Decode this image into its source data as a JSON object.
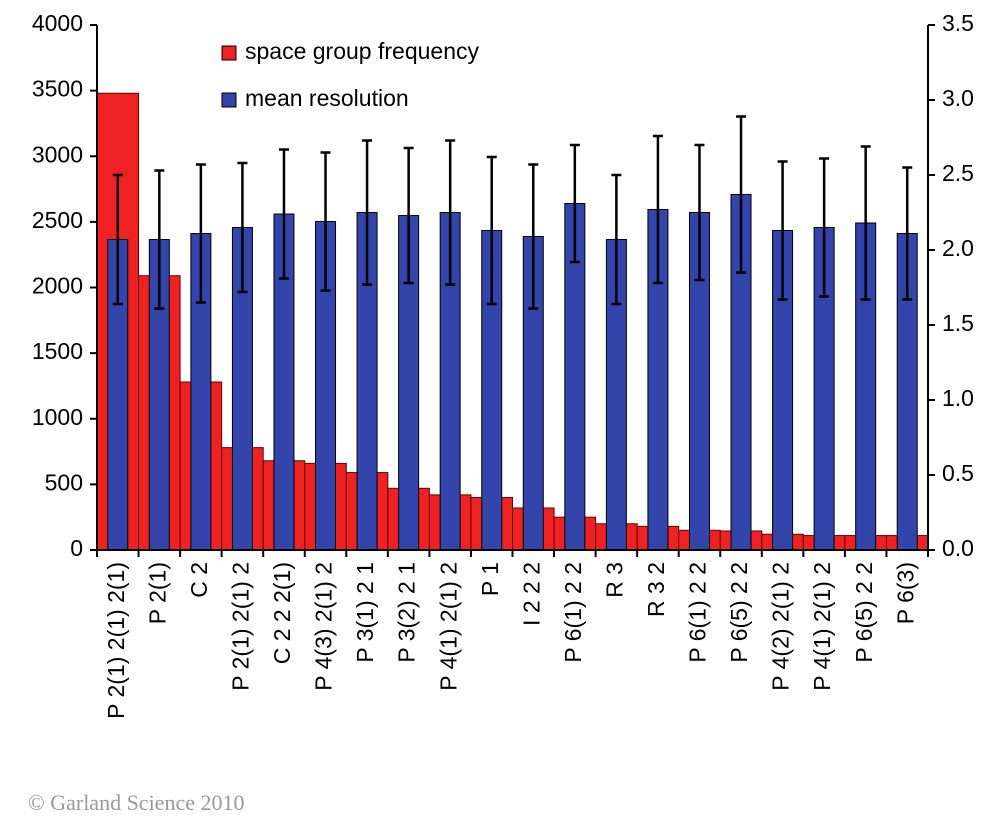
{
  "chart_data": {
    "type": "bar",
    "categories": [
      "P 2(1) 2(1) 2(1)",
      "P 2(1)",
      "C 2",
      "P 2(1) 2(1) 2",
      "C 2 2 2(1)",
      "P 4(3) 2(1) 2",
      "P 3(1) 2 1",
      "P 3(2) 2 1",
      "P 4(1) 2(1) 2",
      "P 1",
      "I 2 2 2",
      "P 6(1) 2 2",
      "R 3",
      "R 3 2",
      "P 6(1) 2 2",
      "P 6(5) 2 2",
      "P 4(2) 2(1) 2",
      "P 4(1) 2(1) 2",
      "P 6(5) 2 2",
      "P 6(3)"
    ],
    "series": [
      {
        "name": "space group frequency",
        "color": "#ee2222",
        "axis": "y",
        "values": [
          3480,
          2090,
          1280,
          780,
          680,
          660,
          590,
          470,
          420,
          400,
          320,
          250,
          200,
          180,
          150,
          145,
          120,
          110,
          110,
          110
        ]
      },
      {
        "name": "mean resolution",
        "color": "#3344aa",
        "axis": "y2",
        "values": [
          2.07,
          2.07,
          2.11,
          2.15,
          2.24,
          2.19,
          2.25,
          2.23,
          2.25,
          2.13,
          2.09,
          2.31,
          2.07,
          2.27,
          2.25,
          2.37,
          2.13,
          2.15,
          2.18,
          2.11
        ],
        "errors": [
          0.43,
          0.46,
          0.46,
          0.43,
          0.43,
          0.46,
          0.48,
          0.45,
          0.48,
          0.49,
          0.48,
          0.39,
          0.43,
          0.49,
          0.45,
          0.52,
          0.46,
          0.46,
          0.51,
          0.44
        ]
      }
    ],
    "ylim": [
      0,
      4000
    ],
    "yticks": [
      0,
      500,
      1000,
      1500,
      2000,
      2500,
      3000,
      3500,
      4000
    ],
    "y2lim": [
      0,
      3.5
    ],
    "y2ticks": [
      {
        "value": 0,
        "label": "0.0"
      },
      0.5,
      {
        "value": 1,
        "label": "1.0"
      },
      1.5,
      {
        "value": 2,
        "label": "2.0"
      },
      2.5,
      {
        "value": 3,
        "label": "3.0"
      },
      3.5
    ],
    "legend": "top-left"
  },
  "footer": {
    "copyright": "© Garland Science 2010"
  }
}
